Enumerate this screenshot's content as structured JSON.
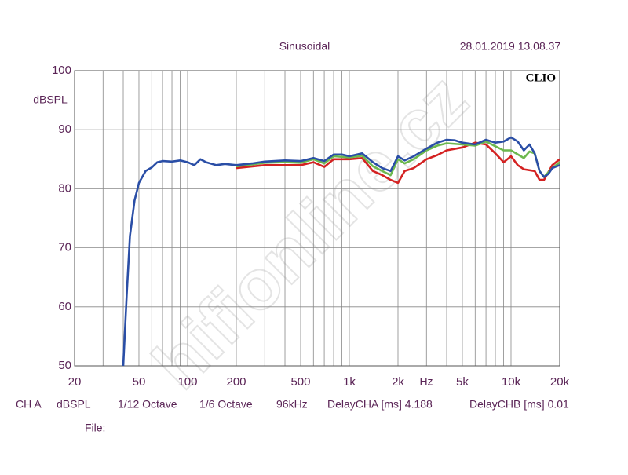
{
  "chart_data": {
    "type": "line",
    "title": "Sinusoidal",
    "timestamp": "28.01.2019 13.08.37",
    "logo": "CLIO",
    "y_label": "dBSPL",
    "x_unit": "Hz",
    "watermark": "hifionline.cz",
    "footer": [
      "CH A",
      "dBSPL",
      "1/12 Octave",
      "1/6 Octave",
      "96kHz",
      "DelayCHA [ms] 4.188",
      "DelayCHB [ms] 0.01"
    ],
    "file_label": "File:",
    "xscale": "log",
    "xlim": [
      20,
      20000
    ],
    "ylim": [
      50,
      100
    ],
    "xticks": [
      20,
      50,
      100,
      200,
      500,
      {
        "value": 1000,
        "label": "1k"
      },
      {
        "value": 2000,
        "label": "2k"
      },
      {
        "value": 5000,
        "label": "5k"
      },
      {
        "value": 10000,
        "label": "10k"
      },
      {
        "value": 20000,
        "label": "20k"
      }
    ],
    "yticks": [
      50,
      60,
      70,
      80,
      90,
      100
    ],
    "xgrid": [
      20,
      30,
      40,
      50,
      60,
      70,
      80,
      90,
      100,
      200,
      300,
      400,
      500,
      600,
      700,
      800,
      900,
      1000,
      2000,
      3000,
      4000,
      5000,
      6000,
      7000,
      8000,
      9000,
      10000,
      20000
    ],
    "grid": true,
    "series": [
      {
        "color": "#d42222",
        "x": [
          200,
          300,
          400,
          500,
          600,
          700,
          800,
          1000,
          1200,
          1400,
          1600,
          1800,
          2000,
          2200,
          2500,
          3000,
          3500,
          4000,
          5000,
          6000,
          7000,
          8000,
          9000,
          10000,
          11000,
          12000,
          14000,
          15000,
          16000,
          18000,
          20000
        ],
        "values": [
          83.5,
          84,
          84,
          84,
          84.5,
          83.7,
          85,
          85,
          85.2,
          83,
          82.3,
          81.5,
          81,
          83,
          83.5,
          85,
          85.7,
          86.5,
          87,
          87.8,
          87.5,
          86,
          84.5,
          85.5,
          84,
          83.3,
          83,
          81.5,
          81.5,
          84,
          85
        ]
      },
      {
        "color": "#6cb84e",
        "x": [
          200,
          300,
          400,
          500,
          600,
          700,
          800,
          1000,
          1200,
          1400,
          1600,
          1800,
          2000,
          2200,
          2500,
          3000,
          3500,
          4000,
          5000,
          6000,
          7000,
          8000,
          9000,
          10000,
          12000,
          13000,
          14000,
          15000,
          16000,
          18000,
          20000
        ],
        "values": [
          83.8,
          84.4,
          84.5,
          84.4,
          85,
          84.3,
          85.5,
          85.3,
          85.6,
          83.8,
          83,
          82.3,
          85,
          84.3,
          85,
          86.5,
          87.3,
          87.7,
          87.5,
          87.3,
          88,
          87.2,
          86.5,
          86.5,
          85.2,
          86.3,
          86,
          83,
          82,
          83.5,
          84.5
        ]
      },
      {
        "color": "#2a4ea6",
        "x": [
          40,
          42,
          44,
          47,
          50,
          55,
          60,
          65,
          70,
          80,
          90,
          100,
          110,
          120,
          130,
          150,
          170,
          200,
          250,
          300,
          400,
          500,
          600,
          700,
          800,
          900,
          1000,
          1200,
          1400,
          1600,
          1800,
          2000,
          2200,
          2500,
          3000,
          3500,
          4000,
          4500,
          5000,
          6000,
          7000,
          8000,
          9000,
          10000,
          11000,
          12000,
          13000,
          14000,
          15000,
          16000,
          17000,
          18000,
          20000
        ],
        "values": [
          50,
          62,
          72,
          78,
          81,
          83,
          83.6,
          84.5,
          84.7,
          84.6,
          84.8,
          84.5,
          84,
          85,
          84.5,
          84,
          84.2,
          84,
          84.3,
          84.6,
          84.8,
          84.7,
          85.2,
          84.7,
          85.8,
          85.8,
          85.5,
          86,
          84.5,
          83.5,
          83,
          85.5,
          84.8,
          85.5,
          86.8,
          87.8,
          88.3,
          88.2,
          87.8,
          87.5,
          88.3,
          87.8,
          88,
          88.7,
          88,
          86.5,
          87.5,
          86,
          83,
          82,
          82.5,
          83.5,
          84
        ]
      }
    ]
  }
}
